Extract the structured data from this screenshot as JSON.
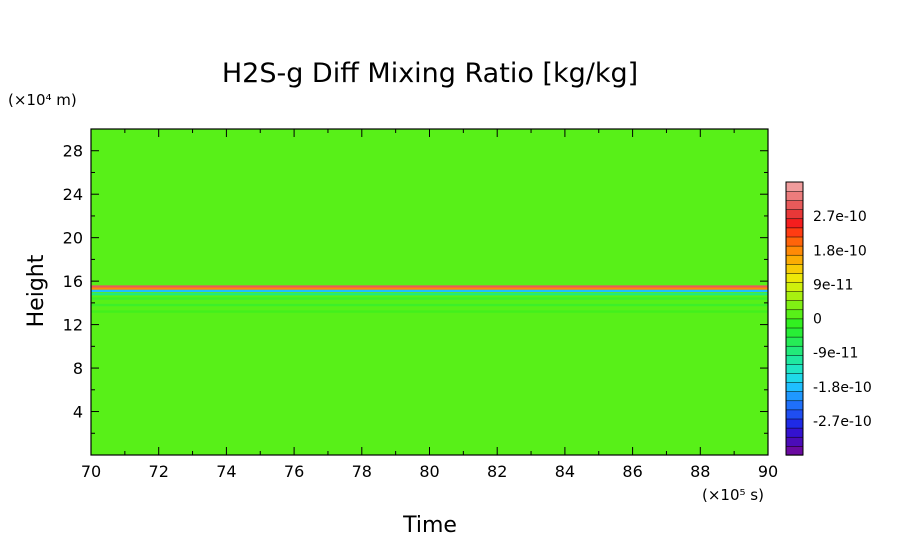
{
  "chart_data": {
    "type": "heatmap",
    "title": "H2S-g Diff Mixing Ratio [kg/kg]",
    "xlabel": "Time",
    "ylabel": "Height",
    "x_unit_label": "(×10⁵ s)",
    "y_unit_label": "(×10⁴ m)",
    "xlim": [
      70,
      90
    ],
    "ylim": [
      0,
      30
    ],
    "x_ticks": [
      "70",
      "72",
      "74",
      "76",
      "78",
      "80",
      "82",
      "84",
      "86",
      "88",
      "90"
    ],
    "y_ticks": [
      "4",
      "8",
      "12",
      "16",
      "20",
      "24",
      "28"
    ],
    "background_value": 0,
    "features": [
      {
        "y": 15.5,
        "value": 3e-10,
        "kind": "thin positive band"
      },
      {
        "y": 15.3,
        "value": 1.8e-10,
        "kind": "thin positive band"
      },
      {
        "y": 15.1,
        "value": -1.8e-10,
        "kind": "thin negative band"
      },
      {
        "y": 14.8,
        "value": -9e-11,
        "kind": "thin negative band"
      },
      {
        "y": 14.4,
        "value": -4e-11,
        "kind": "weak band"
      },
      {
        "y": 13.8,
        "value": -3e-11,
        "kind": "weak band"
      },
      {
        "y": 13.2,
        "value": -2e-11,
        "kind": "weak band"
      }
    ],
    "colorbar": {
      "min": -3.6e-10,
      "max": 3.6e-10,
      "labels": [
        "2.7e-10",
        "1.8e-10",
        "9e-11",
        "0",
        "-9e-11",
        "-1.8e-10",
        "-2.7e-10"
      ],
      "label_values": [
        2.7e-10,
        1.8e-10,
        9e-11,
        0,
        -9e-11,
        -1.8e-10,
        -2.7e-10
      ],
      "colors": [
        "#6a0aa0",
        "#4b0cb8",
        "#3412d0",
        "#1f2ae6",
        "#1f4ef2",
        "#1f70fb",
        "#1f98ff",
        "#1fbfff",
        "#1fd9e8",
        "#1fe5c4",
        "#1fe8a0",
        "#22ea7a",
        "#26ec56",
        "#28ee36",
        "#32f020",
        "#58f018",
        "#80f014",
        "#a8f010",
        "#cff00c",
        "#ede808",
        "#f7cc06",
        "#fbac04",
        "#ff8a06",
        "#ff640a",
        "#ff3c12",
        "#f51e1e",
        "#e83838",
        "#e85a5a",
        "#ec7c7c",
        "#f09c9c"
      ]
    },
    "grid": false,
    "legend": "colorbar-right"
  }
}
